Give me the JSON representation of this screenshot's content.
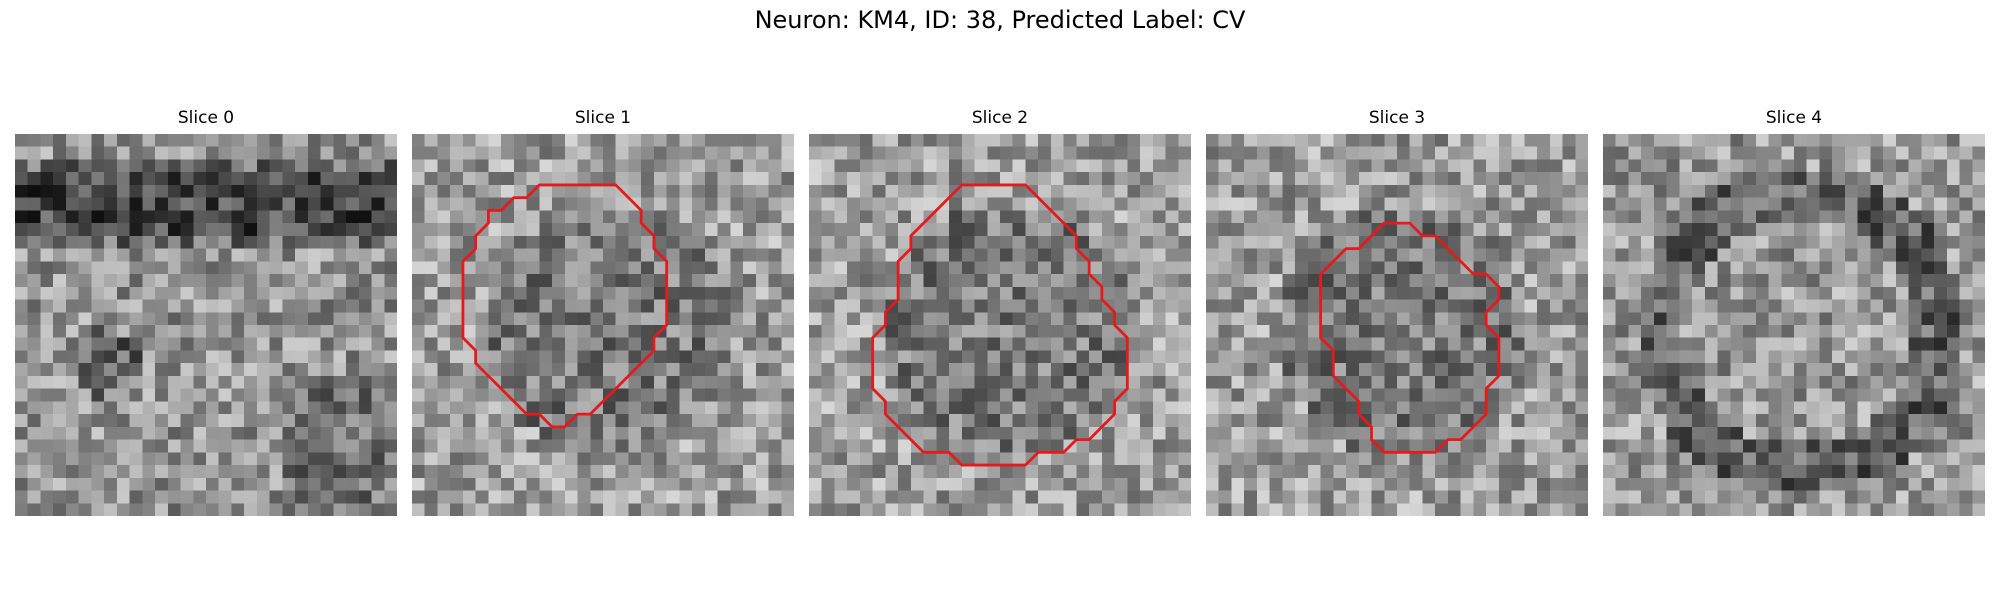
{
  "figure": {
    "title": "Neuron: KM4, ID: 38, Predicted Label: CV",
    "contour_color": "#e41a1c",
    "panels": [
      {
        "title": "Slice 0",
        "has_contour": false,
        "pattern": "band"
      },
      {
        "title": "Slice 1",
        "has_contour": true,
        "pattern": "blob",
        "contour": [
          [
            13,
            4
          ],
          [
            16,
            4
          ],
          [
            17,
            5
          ],
          [
            18,
            6
          ],
          [
            18,
            7
          ],
          [
            19,
            8
          ],
          [
            19,
            9
          ],
          [
            20,
            10
          ],
          [
            20,
            15
          ],
          [
            19,
            16
          ],
          [
            19,
            17
          ],
          [
            18,
            18
          ],
          [
            17,
            19
          ],
          [
            16,
            20
          ],
          [
            15,
            21
          ],
          [
            14,
            22
          ],
          [
            13,
            22
          ],
          [
            12,
            23
          ],
          [
            11,
            23
          ],
          [
            10,
            22
          ],
          [
            9,
            22
          ],
          [
            8,
            21
          ],
          [
            7,
            20
          ],
          [
            6,
            19
          ],
          [
            5,
            18
          ],
          [
            5,
            17
          ],
          [
            4,
            16
          ],
          [
            4,
            10
          ],
          [
            5,
            9
          ],
          [
            5,
            8
          ],
          [
            6,
            7
          ],
          [
            6,
            6
          ],
          [
            7,
            6
          ],
          [
            8,
            5
          ],
          [
            9,
            5
          ],
          [
            10,
            4
          ]
        ]
      },
      {
        "title": "Slice 2",
        "has_contour": true,
        "pattern": "blob",
        "contour": [
          [
            12,
            4
          ],
          [
            17,
            4
          ],
          [
            18,
            5
          ],
          [
            19,
            6
          ],
          [
            20,
            7
          ],
          [
            21,
            8
          ],
          [
            21,
            9
          ],
          [
            22,
            10
          ],
          [
            22,
            11
          ],
          [
            23,
            12
          ],
          [
            23,
            13
          ],
          [
            24,
            14
          ],
          [
            24,
            15
          ],
          [
            25,
            16
          ],
          [
            25,
            20
          ],
          [
            24,
            21
          ],
          [
            24,
            22
          ],
          [
            23,
            23
          ],
          [
            22,
            24
          ],
          [
            21,
            24
          ],
          [
            20,
            25
          ],
          [
            18,
            25
          ],
          [
            17,
            26
          ],
          [
            12,
            26
          ],
          [
            11,
            25
          ],
          [
            10,
            25
          ],
          [
            9,
            25
          ],
          [
            8,
            24
          ],
          [
            7,
            23
          ],
          [
            6,
            22
          ],
          [
            6,
            21
          ],
          [
            5,
            20
          ],
          [
            5,
            16
          ],
          [
            6,
            15
          ],
          [
            6,
            14
          ],
          [
            7,
            13
          ],
          [
            7,
            10
          ],
          [
            8,
            9
          ],
          [
            8,
            8
          ],
          [
            9,
            7
          ],
          [
            10,
            6
          ],
          [
            11,
            5
          ],
          [
            12,
            4
          ]
        ]
      },
      {
        "title": "Slice 3",
        "has_contour": true,
        "pattern": "blob",
        "contour": [
          [
            14,
            7
          ],
          [
            16,
            7
          ],
          [
            17,
            8
          ],
          [
            18,
            8
          ],
          [
            19,
            9
          ],
          [
            20,
            10
          ],
          [
            21,
            11
          ],
          [
            22,
            11
          ],
          [
            23,
            12
          ],
          [
            23,
            13
          ],
          [
            22,
            14
          ],
          [
            22,
            15
          ],
          [
            23,
            16
          ],
          [
            23,
            19
          ],
          [
            22,
            20
          ],
          [
            22,
            22
          ],
          [
            21,
            23
          ],
          [
            20,
            24
          ],
          [
            19,
            24
          ],
          [
            18,
            25
          ],
          [
            15,
            25
          ],
          [
            14,
            25
          ],
          [
            13,
            24
          ],
          [
            13,
            23
          ],
          [
            12,
            22
          ],
          [
            12,
            21
          ],
          [
            11,
            20
          ],
          [
            10,
            19
          ],
          [
            10,
            17
          ],
          [
            9,
            16
          ],
          [
            9,
            11
          ],
          [
            10,
            10
          ],
          [
            11,
            9
          ],
          [
            12,
            9
          ],
          [
            13,
            8
          ],
          [
            14,
            7
          ]
        ]
      },
      {
        "title": "Slice 4",
        "has_contour": false,
        "pattern": "ring"
      }
    ]
  }
}
